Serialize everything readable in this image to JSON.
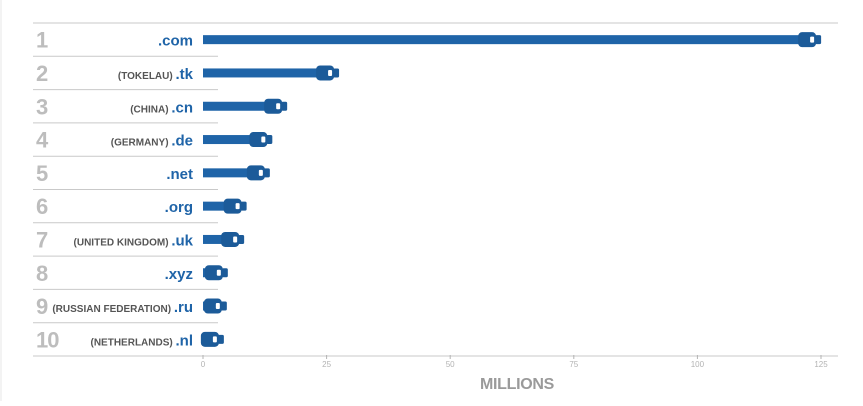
{
  "colors": {
    "bar": "#1f64a8",
    "bar_dark": "#1c5b99",
    "label_text": "#1f64a8",
    "country_text": "#555555",
    "rank_text": "#bdbdbd",
    "rule": "#c9c9c9",
    "axis_text": "#b3b3b3",
    "axis_title": "#9a9a9a"
  },
  "chart_data": {
    "type": "bar",
    "orientation": "horizontal",
    "categories": [
      ".com",
      ".tk",
      ".cn",
      ".de",
      ".net",
      ".org",
      ".uk",
      ".xyz",
      ".ru",
      ".nl"
    ],
    "series": [
      {
        "values": [
          123,
          25.5,
          15,
          12,
          11.5,
          6.8,
          6.3,
          3,
          2.8,
          2.2
        ]
      }
    ],
    "rows": [
      {
        "rank": "1",
        "country": "",
        "tld": ".com",
        "value": 123
      },
      {
        "rank": "2",
        "country": "(TOKELAU)",
        "tld": ".tk",
        "value": 25.5
      },
      {
        "rank": "3",
        "country": "(CHINA)",
        "tld": ".cn",
        "value": 15
      },
      {
        "rank": "4",
        "country": "(GERMANY)",
        "tld": ".de",
        "value": 12
      },
      {
        "rank": "5",
        "country": "",
        "tld": ".net",
        "value": 11.5
      },
      {
        "rank": "6",
        "country": "",
        "tld": ".org",
        "value": 6.8
      },
      {
        "rank": "7",
        "country": "(UNITED KINGDOM)",
        "tld": ".uk",
        "value": 6.3
      },
      {
        "rank": "8",
        "country": "",
        "tld": ".xyz",
        "value": 3
      },
      {
        "rank": "9",
        "country": "(RUSSIAN FEDERATION)",
        "tld": ".ru",
        "value": 2.8
      },
      {
        "rank": "10",
        "country": "(NETHERLANDS)",
        "tld": ".nl",
        "value": 2.2
      }
    ],
    "x_ticks": [
      0,
      25,
      50,
      75,
      100,
      125
    ],
    "xlabel": "MILLIONS",
    "xlim": [
      0,
      125
    ],
    "grid": false,
    "legend": "none"
  }
}
